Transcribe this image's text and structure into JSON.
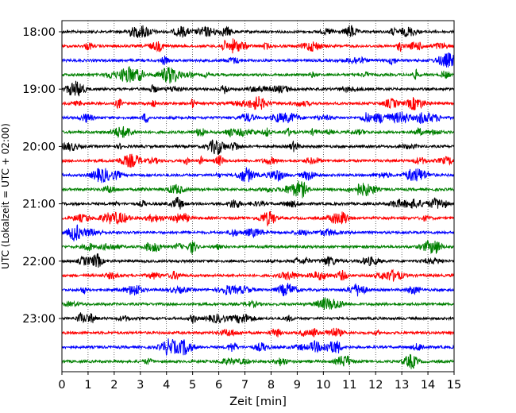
{
  "chart_data": {
    "type": "line",
    "title": "",
    "xlabel": "Zeit  [min]",
    "ylabel": "UTC (Lokalzeit = UTC + 02:00)",
    "xlim": [
      0,
      15
    ],
    "x_ticks": [
      0,
      1,
      2,
      3,
      4,
      5,
      6,
      7,
      8,
      9,
      10,
      11,
      12,
      13,
      14,
      15
    ],
    "x_tick_labels": [
      "0",
      "1",
      "2",
      "3",
      "4",
      "5",
      "6",
      "7",
      "8",
      "9",
      "10",
      "11",
      "12",
      "13",
      "14",
      "15"
    ],
    "y_ticks": [
      "18:00",
      "19:00",
      "20:00",
      "21:00",
      "22:00",
      "23:00"
    ],
    "grid": "vertical dotted",
    "trace_interval_minutes": 15,
    "traces": [
      {
        "start": "18:00",
        "color": "#000000"
      },
      {
        "start": "18:15",
        "color": "#ff0000"
      },
      {
        "start": "18:30",
        "color": "#0000ff"
      },
      {
        "start": "18:45",
        "color": "#008000"
      },
      {
        "start": "19:00",
        "color": "#000000"
      },
      {
        "start": "19:15",
        "color": "#ff0000"
      },
      {
        "start": "19:30",
        "color": "#0000ff"
      },
      {
        "start": "19:45",
        "color": "#008000"
      },
      {
        "start": "20:00",
        "color": "#000000"
      },
      {
        "start": "20:15",
        "color": "#ff0000"
      },
      {
        "start": "20:30",
        "color": "#0000ff"
      },
      {
        "start": "20:45",
        "color": "#008000"
      },
      {
        "start": "21:00",
        "color": "#000000"
      },
      {
        "start": "21:15",
        "color": "#ff0000"
      },
      {
        "start": "21:30",
        "color": "#0000ff"
      },
      {
        "start": "21:45",
        "color": "#008000"
      },
      {
        "start": "22:00",
        "color": "#000000"
      },
      {
        "start": "22:15",
        "color": "#ff0000"
      },
      {
        "start": "22:30",
        "color": "#0000ff"
      },
      {
        "start": "22:45",
        "color": "#008000"
      },
      {
        "start": "23:00",
        "color": "#000000"
      },
      {
        "start": "23:15",
        "color": "#ff0000"
      },
      {
        "start": "23:30",
        "color": "#0000ff"
      },
      {
        "start": "23:45",
        "color": "#008000"
      }
    ]
  }
}
